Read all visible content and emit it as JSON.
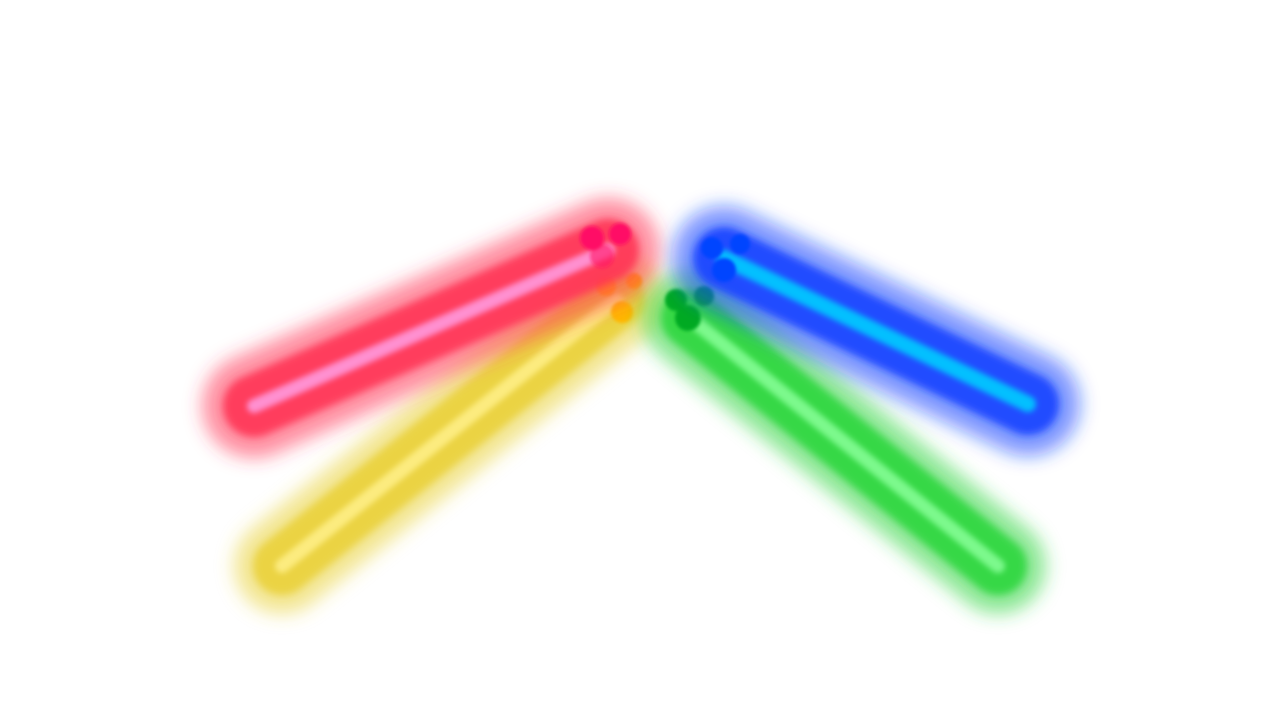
{
  "scene": {
    "background": "#ffffff",
    "beams": [
      {
        "name": "red-beam",
        "color": "#ff3355",
        "core": "#ff99dd",
        "tip": "#ff1166"
      },
      {
        "name": "yellow-beam",
        "color": "#ead23a",
        "core": "#fff08a",
        "tip": "#ffb800"
      },
      {
        "name": "blue-beam",
        "color": "#1a44ff",
        "core": "#00ccff",
        "tip": "#0044ff"
      },
      {
        "name": "green-beam",
        "color": "#2ed63e",
        "core": "#88ff99",
        "tip": "#00aa22"
      }
    ]
  }
}
